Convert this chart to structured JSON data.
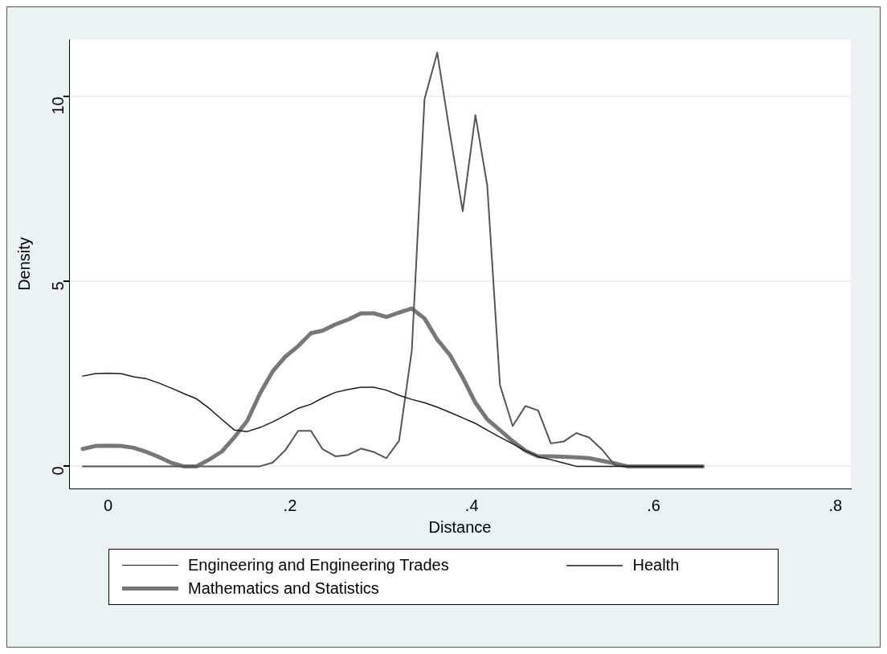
{
  "chart_data": {
    "type": "line",
    "xlabel": "Distance",
    "ylabel": "Density",
    "x": [
      -0.028,
      -0.014,
      0.0,
      0.014,
      0.028,
      0.042,
      0.056,
      0.069,
      0.083,
      0.097,
      0.111,
      0.125,
      0.139,
      0.153,
      0.167,
      0.181,
      0.195,
      0.209,
      0.223,
      0.236,
      0.25,
      0.264,
      0.278,
      0.292,
      0.306,
      0.32,
      0.334,
      0.348,
      0.362,
      0.376,
      0.39,
      0.404,
      0.417,
      0.431,
      0.445,
      0.459,
      0.473,
      0.487,
      0.501,
      0.515,
      0.529,
      0.543,
      0.557,
      0.571,
      0.585,
      0.598,
      0.612,
      0.626,
      0.64,
      0.654
    ],
    "series": [
      {
        "name": "Engineering and Engineering Trades",
        "color": "#1a1a1a",
        "values": [
          2.44,
          2.51,
          2.52,
          2.51,
          2.42,
          2.37,
          2.25,
          2.12,
          1.97,
          1.83,
          1.57,
          1.27,
          0.98,
          0.94,
          1.05,
          1.2,
          1.38,
          1.57,
          1.68,
          1.85,
          2.0,
          2.08,
          2.14,
          2.14,
          2.06,
          1.92,
          1.81,
          1.72,
          1.6,
          1.46,
          1.31,
          1.16,
          0.98,
          0.79,
          0.61,
          0.42,
          0.26,
          0.18,
          0.09,
          0,
          0,
          0,
          0,
          0,
          0,
          0,
          0,
          0,
          0,
          0
        ]
      },
      {
        "name": "Health",
        "color": "#555555",
        "values": [
          0,
          0,
          0,
          0,
          0,
          0,
          0,
          0,
          0,
          0,
          0,
          0,
          0,
          0,
          0,
          0.1,
          0.44,
          0.96,
          0.96,
          0.46,
          0.27,
          0.31,
          0.48,
          0.39,
          0.22,
          0.69,
          3.13,
          9.93,
          11.19,
          9.0,
          6.9,
          9.5,
          7.6,
          2.2,
          1.09,
          1.63,
          1.51,
          0.62,
          0.67,
          0.9,
          0.78,
          0.46,
          0.04,
          0,
          0,
          0,
          0,
          0,
          0,
          0
        ]
      },
      {
        "name": "Mathematics and Statistics",
        "color": "#777777",
        "values": [
          0.47,
          0.55,
          0.56,
          0.55,
          0.5,
          0.39,
          0.25,
          0.1,
          0,
          0,
          0.18,
          0.4,
          0.79,
          1.23,
          1.97,
          2.57,
          2.97,
          3.25,
          3.6,
          3.67,
          3.84,
          3.97,
          4.14,
          4.14,
          4.04,
          4.16,
          4.27,
          4.0,
          3.43,
          3.01,
          2.4,
          1.72,
          1.27,
          0.98,
          0.68,
          0.42,
          0.27,
          0.27,
          0.26,
          0.24,
          0.22,
          0.15,
          0.08,
          0,
          0,
          0,
          0,
          0,
          0,
          0
        ]
      }
    ],
    "xlim": [
      -0.043,
      0.817
    ],
    "ylim": [
      -0.6,
      11.55
    ],
    "xticks": [
      0,
      {
        "value": 0.2,
        "label": ".2"
      },
      {
        "value": 0.4,
        "label": ".4"
      },
      {
        "value": 0.6,
        "label": ".6"
      },
      {
        "value": 0.8,
        "label": ".8"
      }
    ],
    "yticks": [
      0,
      5,
      10
    ],
    "grid": "y",
    "legend": "bottom",
    "marker": "none",
    "line_style": "solid"
  }
}
